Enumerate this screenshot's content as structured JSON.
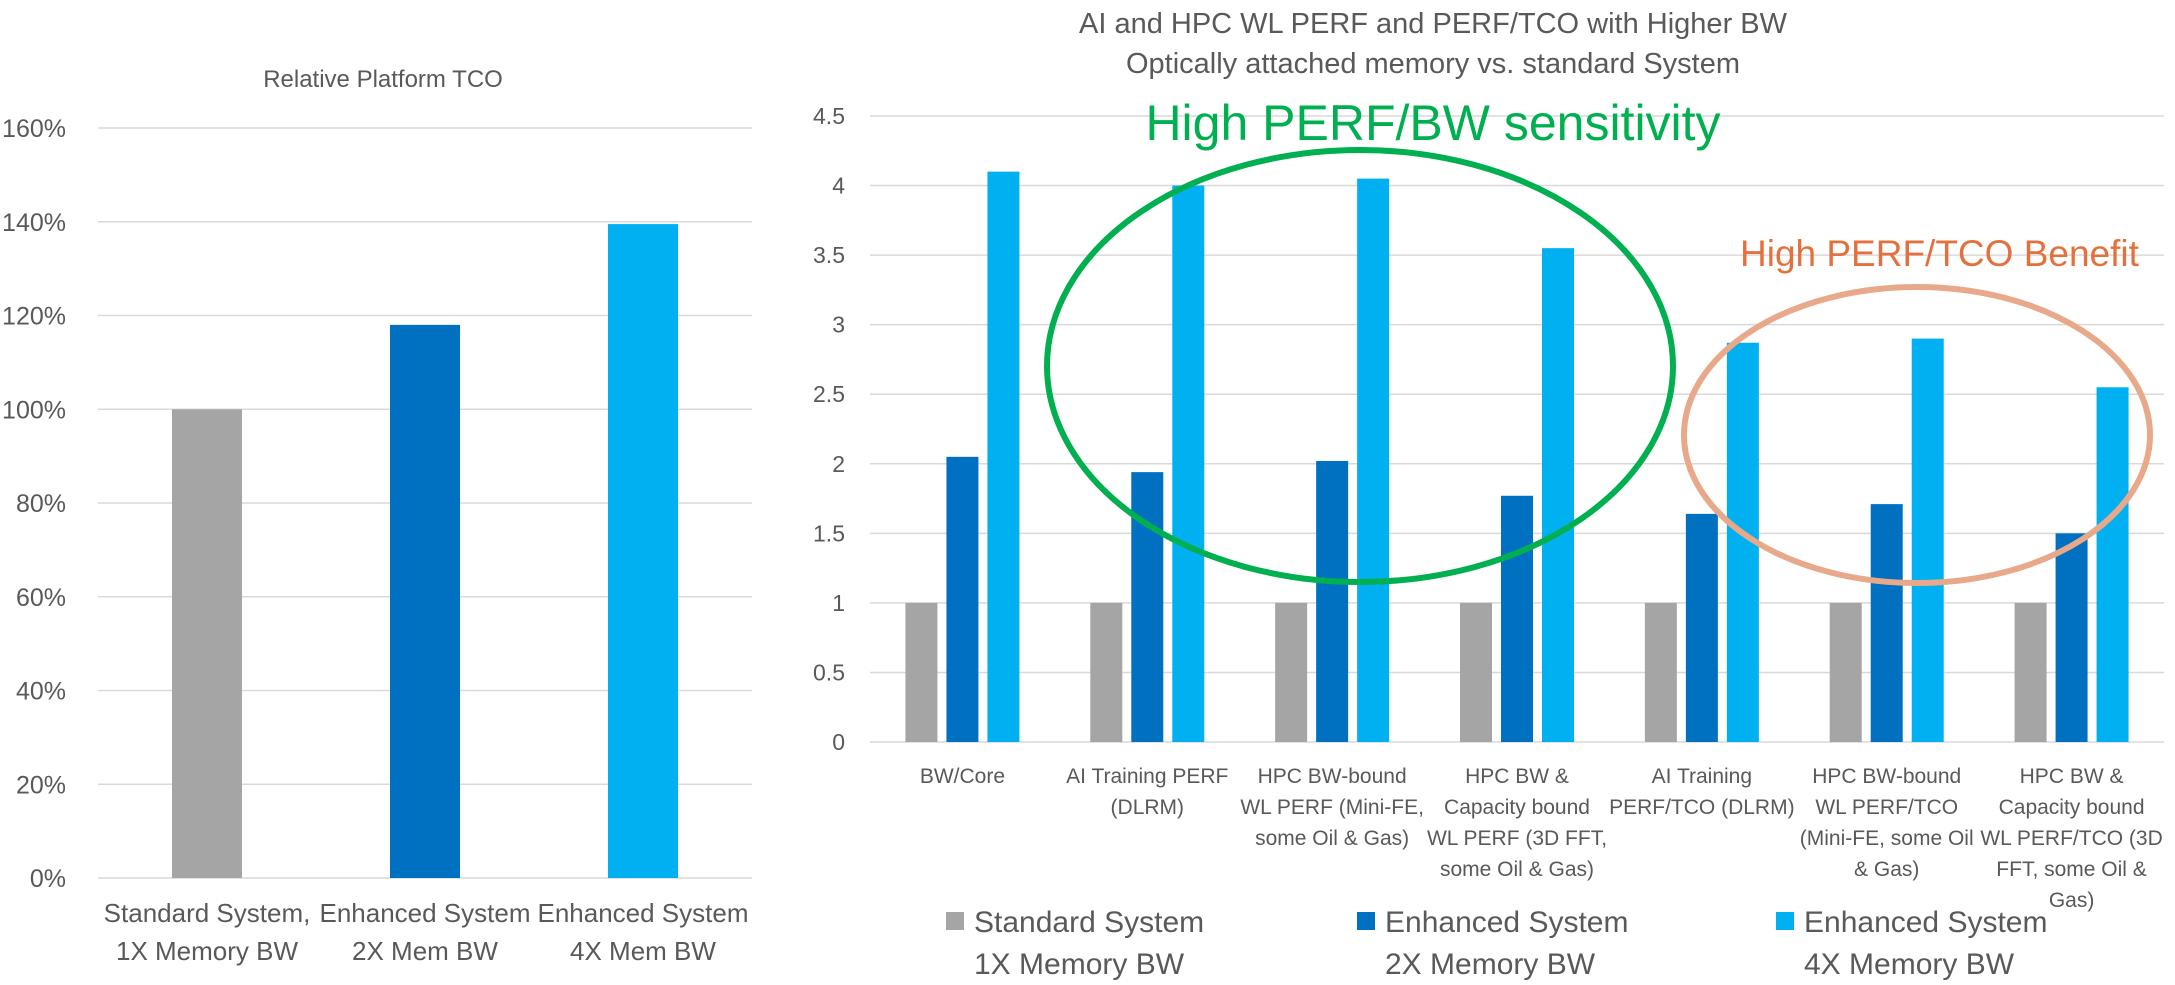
{
  "colors": {
    "standard": "#A5A5A5",
    "enhanced2x": "#0070C0",
    "enhanced4x": "#00B0F0",
    "grid": "#D9D9D9",
    "axis_text": "#595959",
    "green": "#00B050",
    "orange_text": "#E4713D",
    "orange_ring": "#E8A88A"
  },
  "chart_data": [
    {
      "type": "bar",
      "title": "Relative Platform TCO",
      "categories": [
        [
          "Standard System,",
          "1X Memory BW"
        ],
        [
          "Enhanced System",
          "2X Mem BW"
        ],
        [
          "Enhanced System",
          "4X Mem BW"
        ]
      ],
      "values": [
        1.0,
        1.18,
        1.395
      ],
      "ylim": [
        0,
        1.6
      ],
      "yticks": [
        "0%",
        "20%",
        "40%",
        "60%",
        "80%",
        "100%",
        "120%",
        "140%",
        "160%"
      ],
      "xlabel": "",
      "ylabel": "",
      "grid": true
    },
    {
      "type": "bar",
      "title": [
        "AI and HPC WL PERF and PERF/TCO with Higher BW",
        "Optically attached memory vs. standard System"
      ],
      "categories": [
        [
          "BW/Core"
        ],
        [
          "AI Training PERF",
          "(DLRM)"
        ],
        [
          "HPC BW-bound",
          "WL PERF (Mini-FE,",
          "some Oil & Gas)"
        ],
        [
          "HPC BW &",
          "Capacity bound",
          "WL PERF (3D FFT,",
          "some Oil & Gas)"
        ],
        [
          "AI Training",
          "PERF/TCO (DLRM)"
        ],
        [
          "HPC BW-bound",
          "WL PERF/TCO",
          "(Mini-FE, some Oil",
          "& Gas)"
        ],
        [
          "HPC BW &",
          "Capacity bound",
          "WL PERF/TCO (3D",
          "FFT, some Oil &",
          "Gas)"
        ]
      ],
      "series": [
        {
          "name": "Standard System 1X Memory BW",
          "values": [
            1,
            1,
            1,
            1,
            1,
            1,
            1
          ]
        },
        {
          "name": "Enhanced System 2X Memory BW",
          "values": [
            2.05,
            1.94,
            2.02,
            1.77,
            1.64,
            1.71,
            1.5
          ]
        },
        {
          "name": "Enhanced System 4X Memory BW",
          "values": [
            4.1,
            4.0,
            4.05,
            3.55,
            2.87,
            2.9,
            2.55
          ]
        }
      ],
      "ylim": [
        0,
        4.5
      ],
      "yticks": [
        "0",
        "0.5",
        "1",
        "1.5",
        "2",
        "2.5",
        "3",
        "3.5",
        "4",
        "4.5"
      ],
      "legend": {
        "position": "bottom",
        "items": [
          [
            "Standard System",
            "1X Memory BW"
          ],
          [
            "Enhanced System",
            "2X Memory BW"
          ],
          [
            "Enhanced System",
            "4X Memory BW"
          ]
        ]
      },
      "annotations": [
        {
          "text": "High PERF/BW sensitivity",
          "encloses": [
            "AI Training PERF (DLRM)",
            "HPC BW-bound WL PERF (Mini-FE, some Oil & Gas)",
            "HPC BW & Capacity bound WL PERF (3D FFT, some Oil & Gas)"
          ]
        },
        {
          "text": "High PERF/TCO Benefit",
          "encloses": [
            "AI Training PERF/TCO (DLRM)",
            "HPC BW-bound WL PERF/TCO (Mini-FE, some Oil & Gas)",
            "HPC BW & Capacity bound WL PERF/TCO (3D FFT, some Oil & Gas)"
          ]
        }
      ],
      "xlabel": "",
      "ylabel": "",
      "grid": true
    }
  ]
}
